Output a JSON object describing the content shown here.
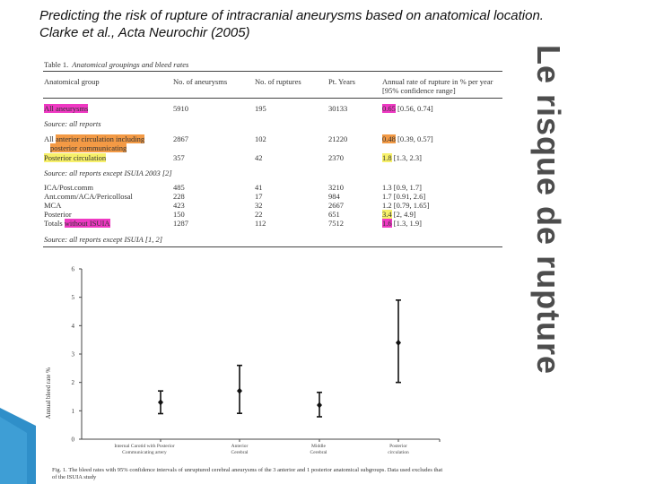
{
  "slide": {
    "title": "Predicting the risk of rupture of intracranial aneurysms based on anatomical location. Clarke et al., Acta Neurochir (2005)",
    "side_title": "Le risque de rupture"
  },
  "table": {
    "caption_label": "Table 1.",
    "caption_title": "Anatomical groupings and bleed rates",
    "headers": [
      "Anatomical group",
      "No. of aneurysms",
      "No. of ruptures",
      "Pt. Years",
      "Annual rate of rupture in % per year",
      "[95% confidence range]"
    ],
    "rows": {
      "all": {
        "label": "All aneurysms",
        "n": "5910",
        "r": "195",
        "py": "30133",
        "rate": "0.65",
        "ci": "[0.56, 0.74]"
      },
      "note1": "Source: all reports",
      "anterior": {
        "prefix": "All",
        "label_line1": "anterior circulation including",
        "label_line2": "posterior communicating",
        "n": "2867",
        "r": "102",
        "py": "21220",
        "rate": "0.48",
        "ci": "[0.39, 0.57]"
      },
      "posterior": {
        "label": "Posterior circulation",
        "n": "357",
        "r": "42",
        "py": "2370",
        "rate": "1.8",
        "ci": "[1.3, 2.3]"
      },
      "note2": "Source: all reports except ISUIA 2003 [2]",
      "sub": [
        {
          "label": "ICA/Post.comm",
          "n": "485",
          "r": "41",
          "py": "3210",
          "rate": "1.3",
          "ci": "[0.9, 1.7]"
        },
        {
          "label": "Ant.comm/ACA/Pericollosal",
          "n": "228",
          "r": "17",
          "py": "984",
          "rate": "1.7",
          "ci": "[0.91, 2.6]"
        },
        {
          "label": "MCA",
          "n": "423",
          "r": "32",
          "py": "2667",
          "rate": "1.2",
          "ci": "[0.79, 1.65]"
        },
        {
          "label": "Posterior",
          "n": "150",
          "r": "22",
          "py": "651",
          "rate": "3.4",
          "ci": "[2, 4.9]"
        }
      ],
      "totals": {
        "prefix": "Totals",
        "label": "without ISUIA",
        "n": "1287",
        "r": "112",
        "py": "7512",
        "rate": "1.6",
        "ci": "[1.3, 1.9]"
      },
      "note3": "Source: all reports except ISUIA [1, 2]"
    }
  },
  "figure": {
    "ylabel": "Annual bleed rate %",
    "caption": "Fig. 1.  The bleed rates with 95% confidence intervals of unruptured cerebral aneurysms of the 3 anterior and 1 posterior anatomical subgroups. Data used excludes that of the ISUIA study",
    "categories": [
      {
        "line1": "Internal Carotid with Posterior",
        "line2": "Communicating artery"
      },
      {
        "line1": "Anterior",
        "line2": "Cerebral"
      },
      {
        "line1": "Middle",
        "line2": "Cerebral"
      },
      {
        "line1": "Posterior",
        "line2": "circulation"
      }
    ]
  },
  "chart_data": {
    "type": "scatter",
    "title": "",
    "xlabel": "",
    "ylabel": "Annual bleed rate %",
    "ylim": [
      0,
      6
    ],
    "yticks": [
      0,
      1,
      2,
      3,
      4,
      5,
      6
    ],
    "grid": false,
    "categories": [
      "Internal Carotid with Posterior Communicating artery",
      "Anterior Cerebral",
      "Middle Cerebral",
      "Posterior circulation"
    ],
    "series": [
      {
        "values": [
          1.3,
          1.7,
          1.2,
          3.4
        ],
        "ci_low": [
          0.9,
          0.91,
          0.79,
          2.0
        ],
        "ci_high": [
          1.7,
          2.6,
          1.65,
          4.9
        ]
      }
    ]
  },
  "colors": {
    "highlight_red": "#f26a4f",
    "highlight_magenta": "#ef39c3",
    "highlight_yellow": "#f7f06a",
    "highlight_orange": "#f39a45",
    "side_title": "#4d4d4d",
    "deco_blue": "#2f8fc9"
  }
}
